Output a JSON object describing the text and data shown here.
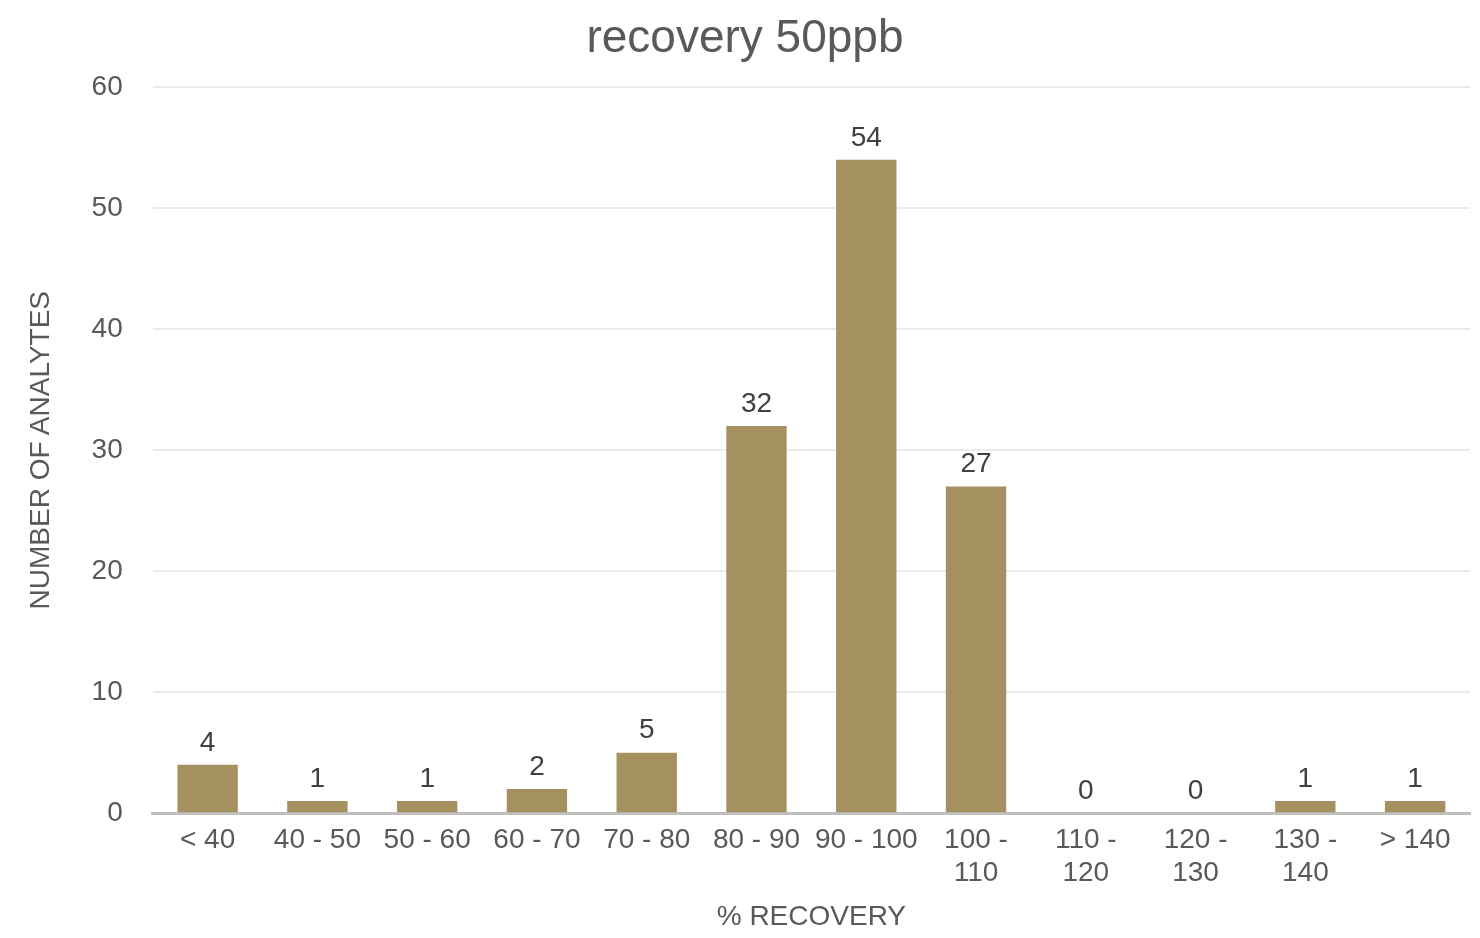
{
  "chart_data": {
    "type": "bar",
    "title": "recovery 50ppb",
    "xlabel": "% RECOVERY",
    "ylabel": "NUMBER OF ANALYTES",
    "categories": [
      "< 40",
      "40 - 50",
      "50 - 60",
      "60 - 70",
      "70 - 80",
      "80 - 90",
      "90 - 100",
      "100 - 110",
      "110 - 120",
      "120 - 130",
      "130 - 140",
      "> 140"
    ],
    "values": [
      4,
      1,
      1,
      2,
      5,
      32,
      54,
      27,
      0,
      0,
      1,
      1
    ],
    "color": "#a5915f",
    "ylim": [
      0,
      60
    ],
    "yticks": [
      0,
      10,
      20,
      30,
      40,
      50,
      60
    ],
    "grid": "y",
    "data_labels": true,
    "legend": false
  }
}
